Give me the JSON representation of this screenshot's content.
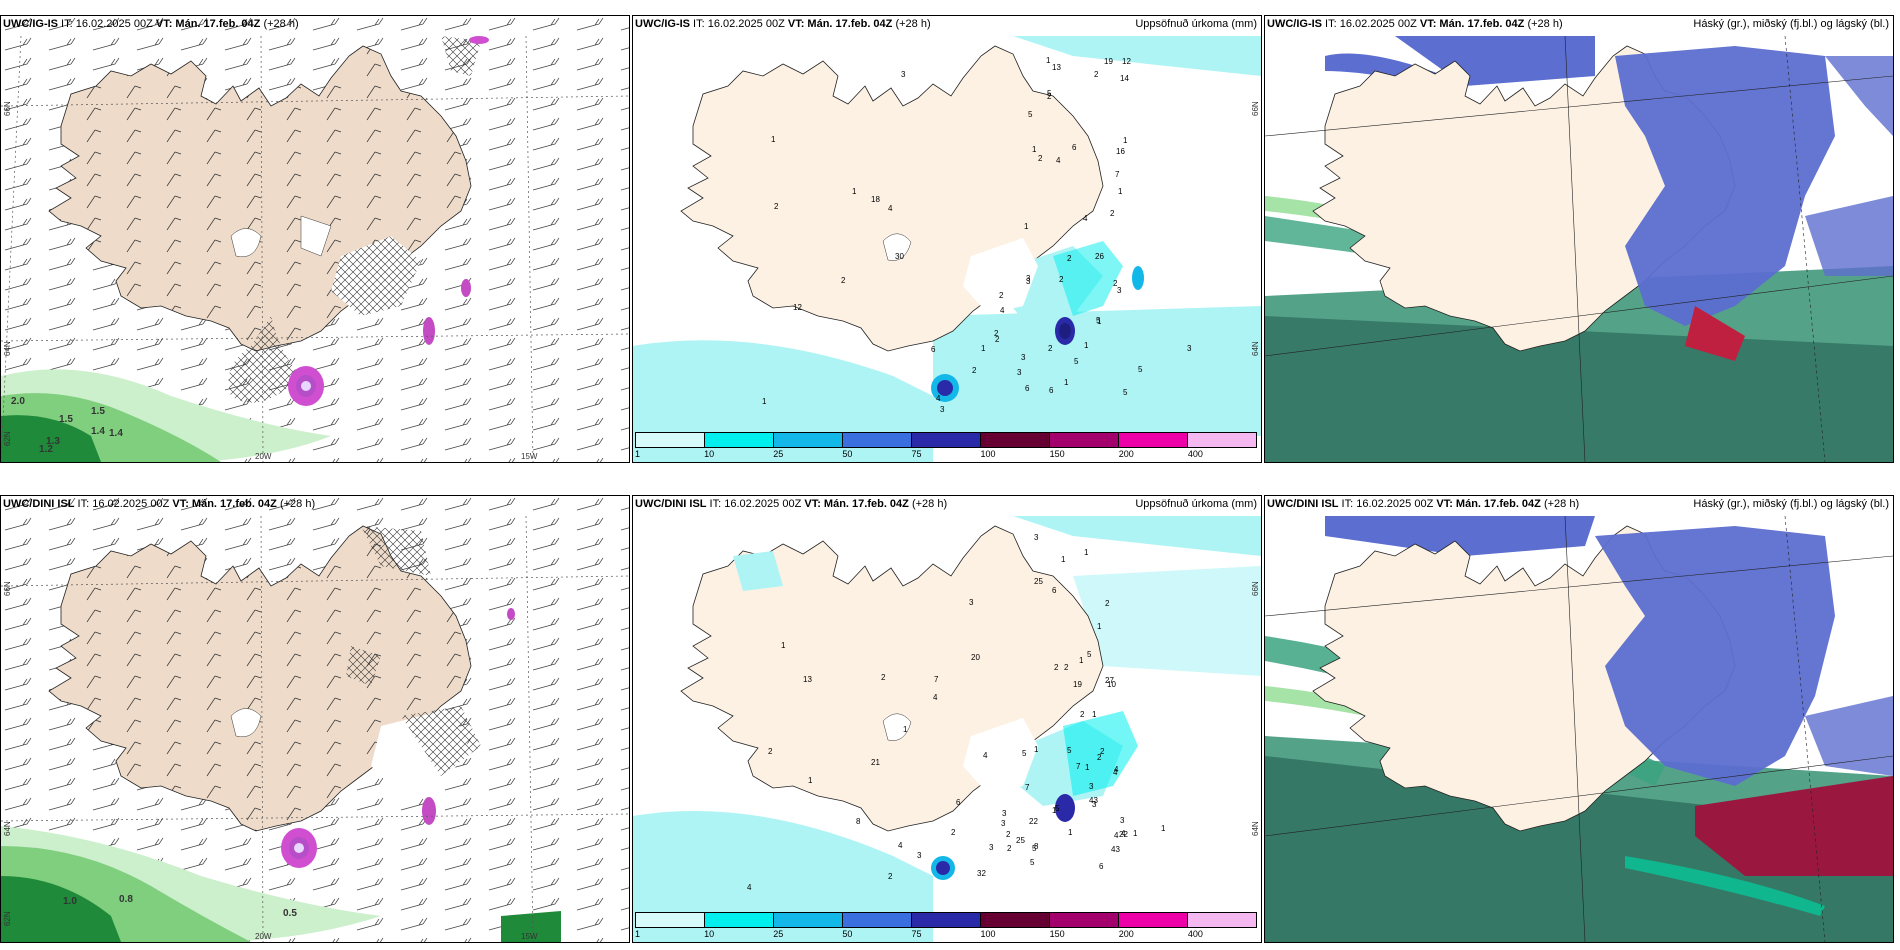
{
  "panels": [
    {
      "id": "top-left",
      "title_model": "UWC/IG-IS",
      "title_it": " IT: 16.02.2025 00Z ",
      "title_vt_label": "VT: Mán. 17.feb. 04Z",
      "title_lead": " (+28 h)",
      "right_label": "",
      "lat_labels": [
        "66N",
        "64N",
        "62N"
      ],
      "lon_labels": [
        "20W",
        "15W"
      ],
      "value_labels": [
        "2.0",
        "1.5",
        "1.5",
        "1.4",
        "1.4",
        "1.3",
        "1.2"
      ]
    },
    {
      "id": "top-mid",
      "title_model": "UWC/IG-IS",
      "title_it": " IT: 16.02.2025 00Z ",
      "title_vt_label": "VT: Mán. 17.feb. 04Z",
      "title_lead": " (+28 h)",
      "right_label": "Uppsöfnuð úrkoma (mm)",
      "lat_labels": [
        "66N",
        "64N"
      ],
      "value_labels": [
        "3",
        "3",
        "2",
        "3",
        "2",
        "1",
        "1",
        "1",
        "2",
        "1",
        "1",
        "1",
        "1",
        "4",
        "1",
        "2",
        "1",
        "6",
        "5",
        "6",
        "5",
        "4",
        "2",
        "6",
        "16",
        "18",
        "26",
        "14",
        "30",
        "12",
        "12",
        "4",
        "2",
        "2",
        "2",
        "2",
        "1",
        "13",
        "6",
        "2",
        "2",
        "4",
        "19",
        "5",
        "2",
        "2",
        "3",
        "4",
        "3",
        "5",
        "5",
        "3",
        "5",
        "7",
        "3",
        "1",
        "3",
        "2",
        "1"
      ]
    },
    {
      "id": "top-right",
      "title_model": "UWC/IG-IS",
      "title_it": " IT: 16.02.2025 00Z ",
      "title_vt_label": "VT: Mán. 17.feb. 04Z",
      "title_lead": " (+28 h)",
      "right_label": "Háský (gr.), miðský (fj.bl.) og lágský (bl.)"
    },
    {
      "id": "bottom-left",
      "title_model": "UWC/DINI ISL",
      "title_it": " IT: 16.02.2025 00Z ",
      "title_vt_label": "VT: Mán. 17.feb. 04Z",
      "title_lead": " (+28 h)",
      "right_label": "",
      "lat_labels": [
        "66N",
        "64N",
        "62N"
      ],
      "lon_labels": [
        "20W",
        "15W"
      ],
      "value_labels": [
        "1.0",
        "0.8",
        "0.5"
      ]
    },
    {
      "id": "bottom-mid",
      "title_model": "UWC/DINI ISL",
      "title_it": " IT: 16.02.2025 00Z ",
      "title_vt_label": "VT: Mán. 17.feb. 04Z",
      "title_lead": " (+28 h)",
      "right_label": "Uppsöfnuð úrkoma (mm)",
      "lat_labels": [
        "66N",
        "64N"
      ],
      "value_labels": [
        "3",
        "1",
        "1",
        "1",
        "2",
        "3",
        "2",
        "2",
        "1",
        "1",
        "1",
        "1",
        "1",
        "1",
        "2",
        "1",
        "2",
        "3",
        "5",
        "4",
        "7",
        "25",
        "13",
        "27",
        "32",
        "22",
        "20",
        "21",
        "10",
        "2",
        "5",
        "1",
        "3",
        "1",
        "2",
        "7",
        "5",
        "5",
        "22",
        "43",
        "43",
        "25",
        "4",
        "2",
        "2",
        "1",
        "1",
        "8",
        "6",
        "8",
        "3",
        "2",
        "19",
        "5",
        "5",
        "4",
        "7",
        "4",
        "3",
        "2",
        "3",
        "2",
        "3",
        "3",
        "4",
        "4",
        "6",
        "6",
        "4",
        "4"
      ]
    },
    {
      "id": "bottom-right",
      "title_model": "UWC/DINI ISL",
      "title_it": " IT: 16.02.2025 00Z ",
      "title_vt_label": "VT: Mán. 17.feb. 04Z",
      "title_lead": " (+28 h)",
      "right_label": "Háský (gr.), miðský (fj.bl.) og lágský (bl.)"
    }
  ],
  "colorbar": {
    "labels": [
      "1",
      "10",
      "25",
      "50",
      "75",
      "100",
      "150",
      "200",
      "400"
    ],
    "colors": [
      "#d7fbfb",
      "#00eeee",
      "#14b8e8",
      "#3a6fe0",
      "#2a2aa8",
      "#660033",
      "#a3006d",
      "#ee00a8",
      "#f5b8f0"
    ]
  },
  "colors": {
    "land": "#fdf1e3",
    "land_wind": "#eedbca",
    "precip_light": "#aef4f5",
    "cloud_high": "#5c6ed0",
    "cloud_low": "#0c7a55",
    "cloud_mid": "#3aa37f"
  }
}
